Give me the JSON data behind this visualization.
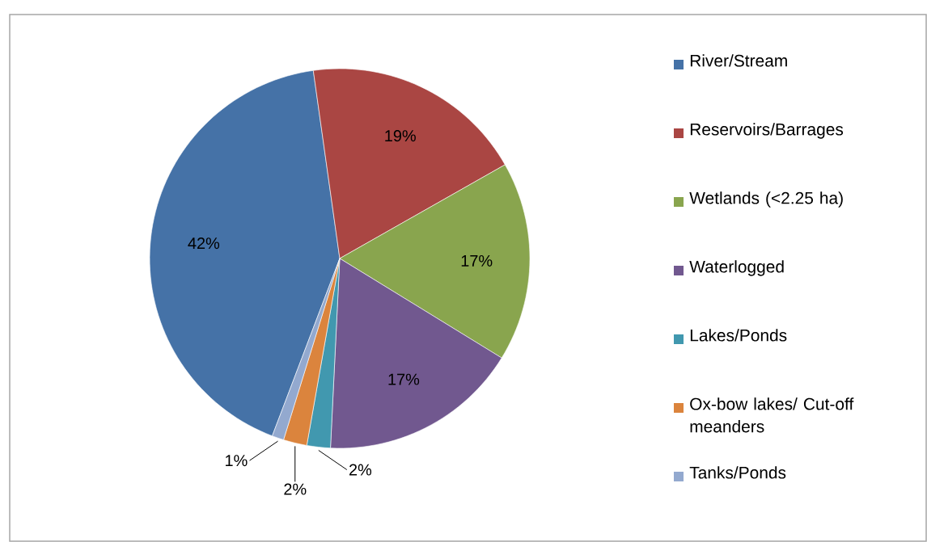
{
  "chart_data": {
    "type": "pie",
    "categories": [
      "River/Stream",
      "Reservoirs/Barrages",
      "Wetlands (<2.25 ha)",
      "Waterlogged",
      "Lakes/Ponds",
      "Ox-bow lakes/ Cut-off meanders",
      "Tanks/Ponds"
    ],
    "values": [
      42,
      19,
      17,
      17,
      2,
      2,
      1
    ],
    "colors": [
      "#4572a7",
      "#aa4643",
      "#89a54e",
      "#71588f",
      "#4198af",
      "#db843d",
      "#93a9cf"
    ],
    "value_labels": [
      "42%",
      "19%",
      "17%",
      "17%",
      "2%",
      "2%",
      "1%"
    ],
    "legend": "right"
  }
}
